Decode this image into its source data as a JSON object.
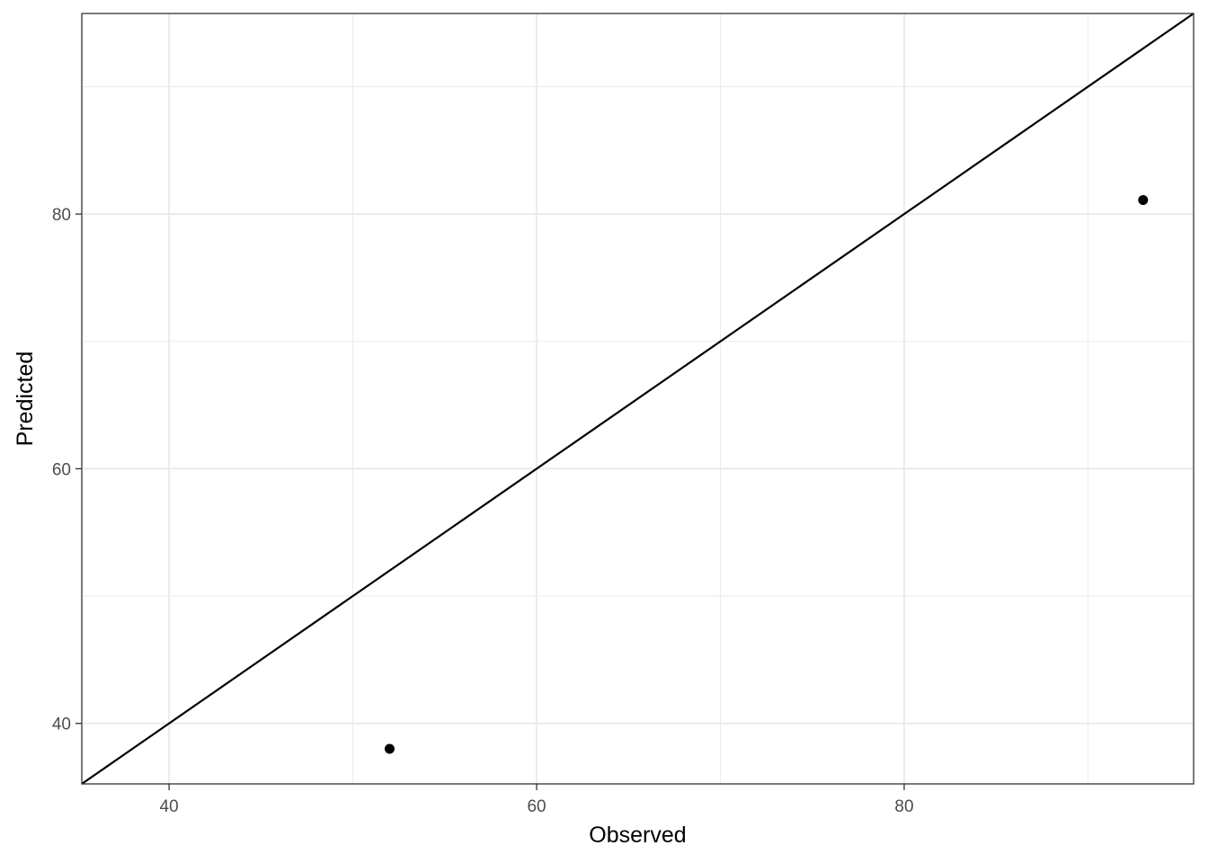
{
  "chart_data": {
    "type": "scatter",
    "title": "",
    "xlabel": "Observed",
    "ylabel": "Predicted",
    "xlim": [
      35.25,
      95.75
    ],
    "ylim": [
      35.25,
      95.75
    ],
    "x_ticks": [
      40,
      60,
      80
    ],
    "y_ticks": [
      40,
      60,
      80
    ],
    "x_minor": [
      50,
      70,
      90
    ],
    "y_minor": [
      50,
      70,
      90
    ],
    "grid": true,
    "reference_line": {
      "type": "identity",
      "slope": 1,
      "intercept": 0,
      "color": "#000000"
    },
    "points": [
      {
        "x": 52.0,
        "y": 38.0
      },
      {
        "x": 93.0,
        "y": 81.1
      }
    ],
    "colors": {
      "point": "#000000",
      "grid": "#ebebeb",
      "panel_border": "#333333"
    }
  }
}
